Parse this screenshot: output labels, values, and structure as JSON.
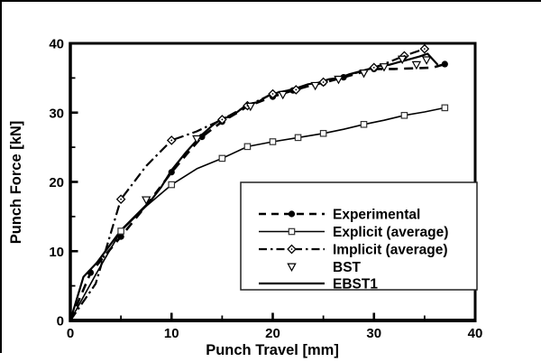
{
  "figure": {
    "background": "#ffffff",
    "frame_color": "#000000",
    "scan_edge_color": "#000000"
  },
  "chart_data": {
    "type": "line",
    "title": "",
    "xlabel": "Punch Travel [mm]",
    "ylabel": "Punch Force [kN]",
    "xlim": [
      0,
      40
    ],
    "ylim": [
      0,
      40
    ],
    "x_major_ticks": [
      0,
      10,
      20,
      30,
      40
    ],
    "x_minor_ticks": [
      5,
      15,
      25,
      35
    ],
    "y_major_ticks": [
      0,
      10,
      20,
      30,
      40
    ],
    "y_minor_ticks": [
      5,
      15,
      25,
      35
    ],
    "grid": false,
    "legend_position": "inside-lower-right",
    "series": [
      {
        "name": "Experimental",
        "line": "dashed",
        "marker": "filled-circle",
        "color": "#000000",
        "points": [
          [
            0,
            0
          ],
          [
            2,
            6.9
          ],
          [
            5,
            12.1
          ],
          [
            7.5,
            16.6
          ],
          [
            10,
            21.4
          ],
          [
            11.5,
            24.0
          ],
          [
            13,
            26.5
          ],
          [
            15,
            28.7
          ],
          [
            16.5,
            30.0
          ],
          [
            17.5,
            30.9
          ],
          [
            20,
            32.3
          ],
          [
            22,
            33.2
          ],
          [
            23.5,
            33.9
          ],
          [
            25,
            34.3
          ],
          [
            27,
            35.1
          ],
          [
            28.5,
            35.7
          ],
          [
            30,
            36.3
          ],
          [
            32,
            36.3
          ],
          [
            34,
            36.4
          ],
          [
            35.8,
            36.5
          ],
          [
            37,
            37.0
          ]
        ],
        "marker_points": [
          [
            2,
            6.9
          ],
          [
            5,
            12.1
          ],
          [
            10,
            21.4
          ],
          [
            13,
            26.5
          ],
          [
            15,
            28.7
          ],
          [
            20,
            32.3
          ],
          [
            22,
            33.2
          ],
          [
            25,
            34.3
          ],
          [
            27,
            35.1
          ],
          [
            30,
            36.3
          ],
          [
            37,
            37.0
          ]
        ]
      },
      {
        "name": "Explicit (average)",
        "line": "solid-thin",
        "marker": "open-square",
        "color": "#000000",
        "points": [
          [
            0,
            0
          ],
          [
            2.5,
            6.6
          ],
          [
            5,
            12.9
          ],
          [
            7.5,
            16.5
          ],
          [
            10,
            19.6
          ],
          [
            12.5,
            21.9
          ],
          [
            15,
            23.4
          ],
          [
            17.5,
            25.1
          ],
          [
            20,
            25.8
          ],
          [
            22.5,
            26.4
          ],
          [
            25,
            27.0
          ],
          [
            27,
            27.6
          ],
          [
            29,
            28.3
          ],
          [
            31,
            28.9
          ],
          [
            33,
            29.6
          ],
          [
            35,
            30.1
          ],
          [
            37,
            30.7
          ]
        ],
        "marker_points": [
          [
            5,
            12.9
          ],
          [
            10,
            19.6
          ],
          [
            15,
            23.4
          ],
          [
            17.5,
            25.1
          ],
          [
            20,
            25.8
          ],
          [
            22.5,
            26.4
          ],
          [
            25,
            27.0
          ],
          [
            29,
            28.3
          ],
          [
            33,
            29.6
          ],
          [
            37,
            30.7
          ]
        ]
      },
      {
        "name": "Implicit (average)",
        "line": "dashdot",
        "marker": "open-diamond",
        "color": "#000000",
        "points": [
          [
            0,
            0
          ],
          [
            2.5,
            5.3
          ],
          [
            5,
            17.5
          ],
          [
            7.5,
            22.3
          ],
          [
            10,
            26.0
          ],
          [
            12.5,
            27.3
          ],
          [
            15,
            29.0
          ],
          [
            17.5,
            31.0
          ],
          [
            20,
            32.7
          ],
          [
            22.3,
            33.3
          ],
          [
            25,
            34.4
          ],
          [
            27.5,
            35.4
          ],
          [
            30,
            36.5
          ],
          [
            31.5,
            37.3
          ],
          [
            33,
            38.2
          ],
          [
            35,
            39.2
          ]
        ],
        "marker_points": [
          [
            5,
            17.5
          ],
          [
            10,
            26.0
          ],
          [
            15,
            29.0
          ],
          [
            17.5,
            31.0
          ],
          [
            20,
            32.7
          ],
          [
            22.3,
            33.3
          ],
          [
            25,
            34.4
          ],
          [
            30,
            36.5
          ],
          [
            33,
            38.2
          ],
          [
            35,
            39.2
          ]
        ]
      },
      {
        "name": "BST",
        "line": "none",
        "marker": "open-triangle-down",
        "color": "#000000",
        "points": [],
        "marker_points": [
          [
            7.5,
            17.4
          ],
          [
            12.5,
            26.2
          ],
          [
            17.8,
            30.9
          ],
          [
            21,
            32.6
          ],
          [
            24.2,
            33.9
          ],
          [
            26.5,
            34.8
          ],
          [
            29,
            35.7
          ],
          [
            31,
            36.6
          ],
          [
            32.8,
            37.7
          ],
          [
            34.2,
            36.9
          ],
          [
            35.2,
            37.6
          ]
        ]
      },
      {
        "name": "EBST1",
        "line": "solid",
        "marker": "none",
        "color": "#000000",
        "points": [
          [
            0,
            0
          ],
          [
            1.3,
            6.3
          ],
          [
            2.6,
            8.3
          ],
          [
            5,
            13.0
          ],
          [
            6.5,
            15.2
          ],
          [
            8,
            17.4
          ],
          [
            9,
            19.3
          ],
          [
            10,
            21.7
          ],
          [
            11.5,
            24.4
          ],
          [
            13,
            26.8
          ],
          [
            14,
            28.1
          ],
          [
            15,
            29.2
          ],
          [
            15.8,
            29.4
          ],
          [
            16.5,
            30.1
          ],
          [
            17.5,
            31.2
          ],
          [
            18.5,
            31.5
          ],
          [
            19.5,
            32.4
          ],
          [
            20.5,
            32.9
          ],
          [
            21.5,
            33.2
          ],
          [
            22.5,
            33.6
          ],
          [
            23.5,
            34.1
          ],
          [
            24.5,
            34.3
          ],
          [
            25.5,
            34.8
          ],
          [
            26.5,
            35.0
          ],
          [
            27.5,
            35.5
          ],
          [
            28.5,
            35.9
          ],
          [
            29.5,
            36.3
          ],
          [
            30.5,
            36.7
          ],
          [
            31.5,
            36.9
          ],
          [
            32.5,
            37.3
          ],
          [
            33.5,
            37.7
          ],
          [
            34.5,
            38.1
          ],
          [
            35.3,
            38.5
          ],
          [
            36.3,
            36.9
          ]
        ],
        "marker_points": []
      }
    ]
  },
  "legend": {
    "entries": [
      "Experimental",
      "Explicit (average)",
      "Implicit (average)",
      "BST",
      "EBST1"
    ]
  }
}
